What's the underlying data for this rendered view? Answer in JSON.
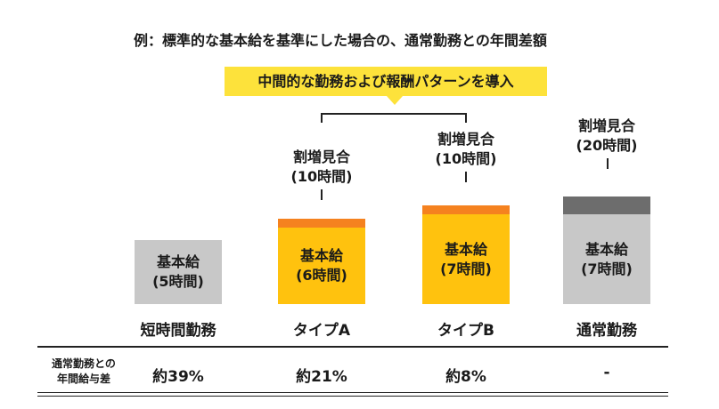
{
  "title": "例：標準的な基本給を基準にした場合の、通常勤務との年間差額",
  "banner": "中間的な勤務および報酬パターンを導入",
  "chart_data": {
    "type": "bar",
    "stacked": true,
    "categories": [
      "短時間勤務",
      "タイプA",
      "タイプB",
      "通常勤務"
    ],
    "unit": "時間",
    "series": [
      {
        "name": "基本給",
        "values": [
          5,
          6,
          7,
          7
        ]
      },
      {
        "name": "割増見合",
        "values": [
          0,
          10,
          10,
          20
        ]
      }
    ],
    "base_labels": [
      "基本給\n(5時間)",
      "基本給\n(6時間)",
      "基本給\n(7時間)",
      "基本給\n(7時間)"
    ],
    "overtime_labels": [
      "",
      "割増見合\n(10時間)",
      "割増見合\n(10時間)",
      "割増見合\n(20時間)"
    ],
    "colors": {
      "base_normal": "#c8c8c8",
      "base_highlight": "#ffc20e",
      "overtime_highlight": "#f5821f",
      "overtime_normal": "#6d6d6d",
      "banner": "#fde23b"
    }
  },
  "table": {
    "row_label": "通常勤務との\n年間給与差",
    "values": [
      "約39%",
      "約21%",
      "約8%",
      "-"
    ]
  }
}
